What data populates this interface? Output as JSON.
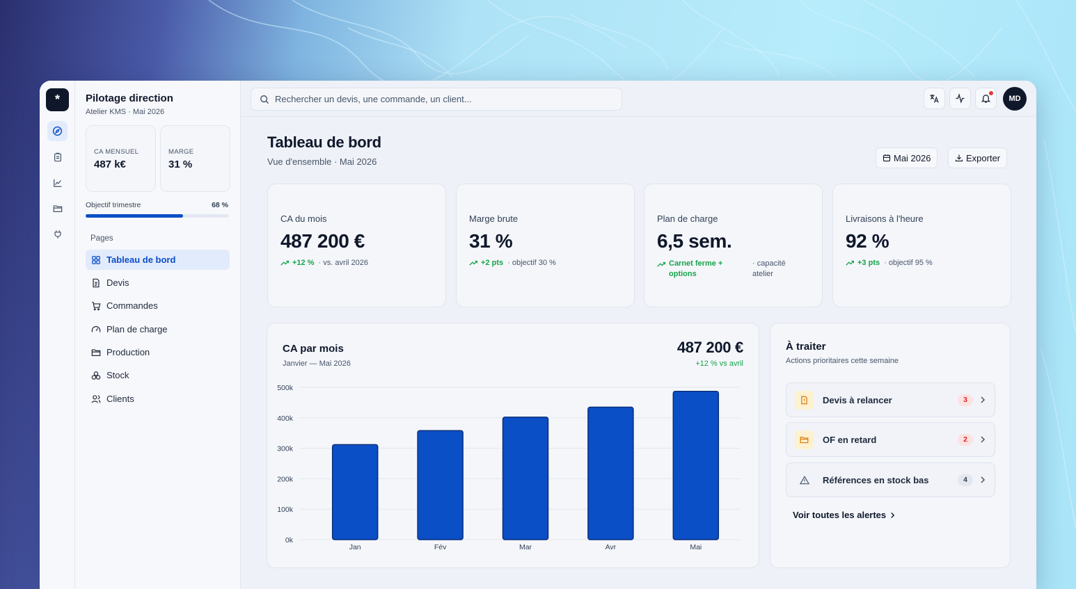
{
  "colors": {
    "accent": "#0b4fc7",
    "positive": "#16a34a",
    "dark": "#0f172a",
    "warn_bg": "#fdf1cf",
    "warn": "#d97706",
    "danger_badge_bg": "#fde2e2",
    "danger_badge": "#dc2626"
  },
  "rail": {
    "logo": "*",
    "icons": [
      "compass-icon",
      "clipboard-icon",
      "chart-line-icon",
      "folder-icon",
      "plug-icon"
    ]
  },
  "sidebar": {
    "title": "Pilotage direction",
    "subtitle": "Atelier KMS · Mai 2026",
    "kpis": [
      {
        "label": "CA MENSUEL",
        "value": "487 k€"
      },
      {
        "label": "MARGE",
        "value": "31 %"
      }
    ],
    "objective": {
      "label": "Objectif trimestre",
      "value": "68 %",
      "fraction": 0.68
    },
    "pages_label": "Pages",
    "items": [
      {
        "label": "Tableau de bord",
        "icon": "grid-icon",
        "active": true
      },
      {
        "label": "Devis",
        "icon": "document-icon"
      },
      {
        "label": "Commandes",
        "icon": "cart-icon"
      },
      {
        "label": "Plan de charge",
        "icon": "gauge-icon"
      },
      {
        "label": "Production",
        "icon": "folder-icon"
      },
      {
        "label": "Stock",
        "icon": "boxes-icon"
      },
      {
        "label": "Clients",
        "icon": "users-icon"
      }
    ]
  },
  "topbar": {
    "search_placeholder": "Rechercher un devis, une commande, un client...",
    "buttons": [
      "translate-icon",
      "activity-icon",
      "bell-icon"
    ],
    "avatar": "MD"
  },
  "header": {
    "title": "Tableau de bord",
    "subtitle": "Vue d'ensemble · Mai 2026",
    "period_button": "Mai 2026",
    "export_button": "Exporter"
  },
  "stats": [
    {
      "label": "CA du mois",
      "value": "487 200 €",
      "delta": "+12 %",
      "note": "· vs. avril 2026"
    },
    {
      "label": "Marge brute",
      "value": "31 %",
      "delta": "+2 pts",
      "note": "· objectif 30 %"
    },
    {
      "label": "Plan de charge",
      "value": "6,5 sem.",
      "delta": "Carnet ferme + options",
      "note": "· capacité atelier"
    },
    {
      "label": "Livraisons à l'heure",
      "value": "92 %",
      "delta": "+3 pts",
      "note": "· objectif 95 %"
    }
  ],
  "chart_card": {
    "title": "CA par mois",
    "subtitle": "Janvier — Mai 2026",
    "total": "487 200 €",
    "total_delta": "+12 % vs avril"
  },
  "chart_data": {
    "type": "bar",
    "categories": [
      "Jan",
      "Fév",
      "Mar",
      "Avr",
      "Mai"
    ],
    "values": [
      312,
      358,
      402,
      435,
      487
    ],
    "ylim": [
      0,
      500
    ],
    "yticks": [
      "0k",
      "100k",
      "200k",
      "300k",
      "400k",
      "500k"
    ],
    "grid": true
  },
  "todo": {
    "title": "À traiter",
    "subtitle": "Actions prioritaires cette semaine",
    "items": [
      {
        "label": "Devis à relancer",
        "count": "3",
        "icon": "alert-doc-icon"
      },
      {
        "label": "OF en retard",
        "count": "2",
        "icon": "folder-icon"
      },
      {
        "label": "Références en stock bas",
        "count": "4",
        "icon": "warning-icon"
      }
    ],
    "see_all": "Voir toutes les alertes"
  }
}
